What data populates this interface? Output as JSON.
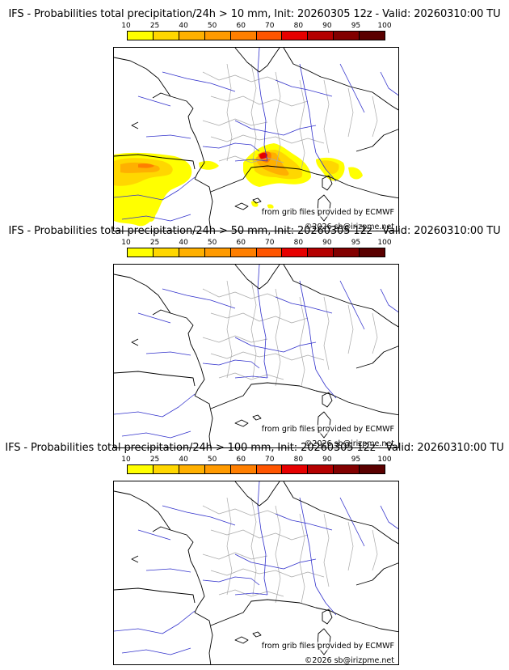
{
  "scale": {
    "labels": [
      "10",
      "25",
      "40",
      "50",
      "60",
      "70",
      "80",
      "90",
      "95",
      "100"
    ],
    "colors": [
      "#ffff00",
      "#ffd700",
      "#ffb000",
      "#ff9a00",
      "#ff7f00",
      "#ff5500",
      "#e60000",
      "#b40000",
      "#820000",
      "#5a0000"
    ]
  },
  "panels": [
    {
      "title": "IFS - Probabilities total precipitation/24h > 10 mm, Init: 20260305 12z - Valid: 20260310:00 TU",
      "precipitation": true
    },
    {
      "title": "IFS - Probabilities total precipitation/24h > 50 mm, Init: 20260305 12z - Valid: 20260310:00 TU",
      "precipitation": false
    },
    {
      "title": "IFS - Probabilities total precipitation/24h > 100 mm, Init: 20260305 12z - Valid: 20260310:00 TU",
      "precipitation": false
    }
  ],
  "credits": {
    "source": "from grib files provided by ECMWF",
    "copyright": "©2026 sb@irizpme.net"
  },
  "map_colors": {
    "coast": "#000000",
    "rivers": "#3333cc",
    "borders": "#aaaaaa"
  }
}
